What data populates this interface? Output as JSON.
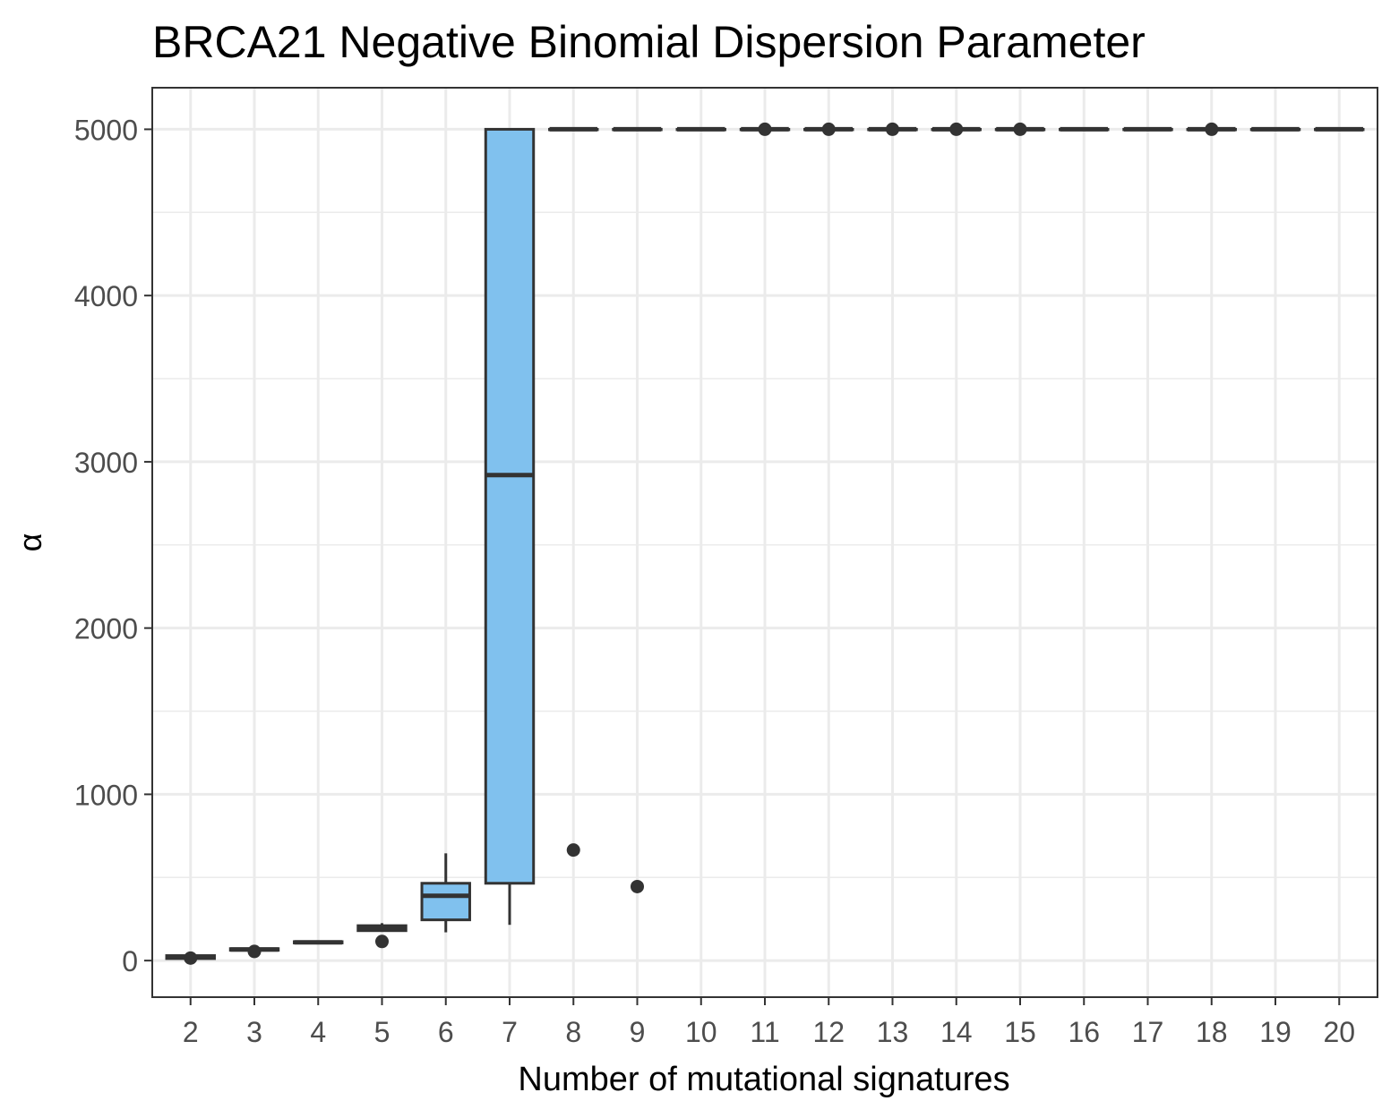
{
  "chart_data": {
    "type": "boxplot",
    "title": "BRCA21 Negative Binomial Dispersion Parameter",
    "xlabel": "Number of mutational signatures",
    "ylabel": "α",
    "ylim": [
      -220,
      5250
    ],
    "yticks": [
      0,
      1000,
      2000,
      3000,
      4000,
      5000
    ],
    "grid": true,
    "box_fill": "#80c1ee",
    "box_stroke": "#333333",
    "categories": [
      "2",
      "3",
      "4",
      "5",
      "6",
      "7",
      "8",
      "9",
      "10",
      "11",
      "12",
      "13",
      "14",
      "15",
      "16",
      "17",
      "18",
      "19",
      "20"
    ],
    "boxes": [
      {
        "x": "2",
        "low": 10,
        "q1": 12,
        "median": 20,
        "q3": 30,
        "high": 35,
        "outliers": [
          15
        ]
      },
      {
        "x": "3",
        "low": 60,
        "q1": 62,
        "median": 67,
        "q3": 72,
        "high": 75,
        "outliers": [
          55
        ]
      },
      {
        "x": "4",
        "low": 105,
        "q1": 106,
        "median": 110,
        "q3": 114,
        "high": 115,
        "outliers": []
      },
      {
        "x": "5",
        "low": 175,
        "q1": 180,
        "median": 195,
        "q3": 210,
        "high": 225,
        "outliers": [
          115
        ]
      },
      {
        "x": "6",
        "low": 170,
        "q1": 245,
        "median": 390,
        "q3": 465,
        "high": 645,
        "outliers": []
      },
      {
        "x": "7",
        "low": 215,
        "q1": 465,
        "median": 2920,
        "q3": 5000,
        "high": 5000,
        "outliers": []
      },
      {
        "x": "8",
        "low": 5000,
        "q1": 5000,
        "median": 5000,
        "q3": 5000,
        "high": 5000,
        "outliers": [
          665
        ]
      },
      {
        "x": "9",
        "low": 5000,
        "q1": 5000,
        "median": 5000,
        "q3": 5000,
        "high": 5000,
        "outliers": [
          445
        ]
      },
      {
        "x": "10",
        "low": 5000,
        "q1": 5000,
        "median": 5000,
        "q3": 5000,
        "high": 5000,
        "outliers": []
      },
      {
        "x": "11",
        "low": 5000,
        "q1": 5000,
        "median": 5000,
        "q3": 5000,
        "high": 5000,
        "outliers": [
          5000
        ]
      },
      {
        "x": "12",
        "low": 5000,
        "q1": 5000,
        "median": 5000,
        "q3": 5000,
        "high": 5000,
        "outliers": [
          5000
        ]
      },
      {
        "x": "13",
        "low": 5000,
        "q1": 5000,
        "median": 5000,
        "q3": 5000,
        "high": 5000,
        "outliers": [
          5000
        ]
      },
      {
        "x": "14",
        "low": 5000,
        "q1": 5000,
        "median": 5000,
        "q3": 5000,
        "high": 5000,
        "outliers": [
          5000
        ]
      },
      {
        "x": "15",
        "low": 5000,
        "q1": 5000,
        "median": 5000,
        "q3": 5000,
        "high": 5000,
        "outliers": [
          5000
        ]
      },
      {
        "x": "16",
        "low": 5000,
        "q1": 5000,
        "median": 5000,
        "q3": 5000,
        "high": 5000,
        "outliers": []
      },
      {
        "x": "17",
        "low": 5000,
        "q1": 5000,
        "median": 5000,
        "q3": 5000,
        "high": 5000,
        "outliers": []
      },
      {
        "x": "18",
        "low": 5000,
        "q1": 5000,
        "median": 5000,
        "q3": 5000,
        "high": 5000,
        "outliers": [
          5000
        ]
      },
      {
        "x": "19",
        "low": 5000,
        "q1": 5000,
        "median": 5000,
        "q3": 5000,
        "high": 5000,
        "outliers": []
      },
      {
        "x": "20",
        "low": 5000,
        "q1": 5000,
        "median": 5000,
        "q3": 5000,
        "high": 5000,
        "outliers": []
      }
    ]
  }
}
